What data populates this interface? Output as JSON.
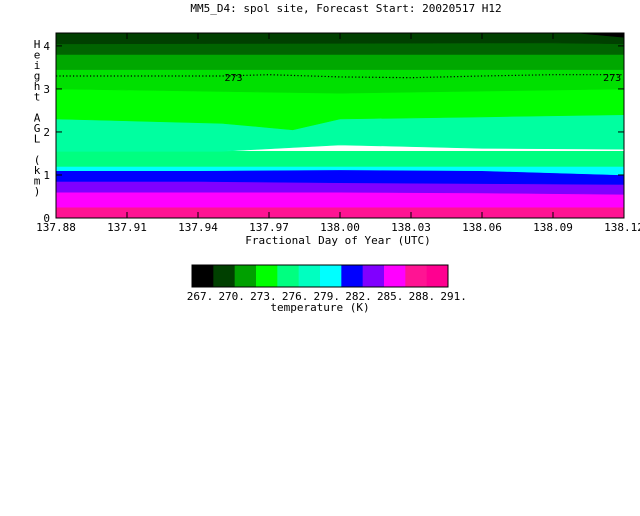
{
  "chart_data": {
    "type": "heatmap",
    "title": "MM5_D4: spol site,  Forecast Start: 20020517 H12",
    "xlabel": "Fractional Day of Year (UTC)",
    "ylabel": "Height AGL (km)",
    "xlim": [
      137.88,
      138.12
    ],
    "ylim": [
      0,
      4.3
    ],
    "x_ticks": [
      "137.88",
      "137.91",
      "137.94",
      "137.97",
      "138.00",
      "138.03",
      "138.06",
      "138.09",
      "138.12"
    ],
    "x_tick_values": [
      137.88,
      137.91,
      137.94,
      137.97,
      138.0,
      138.03,
      138.06,
      138.09,
      138.12
    ],
    "y_ticks": [
      "0",
      "1",
      "2",
      "3",
      "4"
    ],
    "y_tick_values": [
      0,
      1,
      2,
      3,
      4
    ],
    "contour_label": "273",
    "contour_label_x": [
      137.955,
      138.115
    ],
    "bands": [
      {
        "color": "#ff1493",
        "points": [
          [
            137.88,
            0
          ],
          [
            138.12,
            0
          ],
          [
            138.12,
            0.25
          ],
          [
            137.88,
            0.25
          ]
        ]
      },
      {
        "color": "#ff00ff",
        "points": [
          [
            137.88,
            0.25
          ],
          [
            138.12,
            0.25
          ],
          [
            138.12,
            0.55
          ],
          [
            138.06,
            0.58
          ],
          [
            138.0,
            0.6
          ],
          [
            137.94,
            0.6
          ],
          [
            137.88,
            0.6
          ]
        ]
      },
      {
        "color": "#8000ff",
        "points": [
          [
            137.88,
            0.6
          ],
          [
            137.94,
            0.6
          ],
          [
            138.0,
            0.6
          ],
          [
            138.06,
            0.58
          ],
          [
            138.12,
            0.55
          ],
          [
            138.12,
            0.78
          ],
          [
            138.06,
            0.8
          ],
          [
            138.0,
            0.82
          ],
          [
            137.94,
            0.85
          ],
          [
            137.88,
            0.85
          ]
        ]
      },
      {
        "color": "#0000ff",
        "points": [
          [
            137.88,
            0.85
          ],
          [
            137.94,
            0.85
          ],
          [
            138.0,
            0.82
          ],
          [
            138.06,
            0.8
          ],
          [
            138.12,
            0.78
          ],
          [
            138.12,
            1.0
          ],
          [
            138.06,
            1.1
          ],
          [
            138.0,
            1.12
          ],
          [
            137.94,
            1.1
          ],
          [
            137.88,
            1.1
          ]
        ]
      },
      {
        "color": "#00ffff",
        "points": [
          [
            137.88,
            1.1
          ],
          [
            137.94,
            1.1
          ],
          [
            138.0,
            1.12
          ],
          [
            138.06,
            1.1
          ],
          [
            138.12,
            1.0
          ],
          [
            138.12,
            1.2
          ],
          [
            137.88,
            1.2
          ]
        ]
      },
      {
        "color": "#00ff80",
        "points": [
          [
            137.88,
            1.2
          ],
          [
            138.12,
            1.2
          ],
          [
            138.12,
            1.55
          ],
          [
            137.88,
            1.55
          ]
        ]
      },
      {
        "color": "#00ffa0",
        "points": [
          [
            137.88,
            1.55
          ],
          [
            137.95,
            1.55
          ],
          [
            138.0,
            1.7
          ],
          [
            138.06,
            1.62
          ],
          [
            138.12,
            1.6
          ],
          [
            138.12,
            2.4
          ],
          [
            138.06,
            2.35
          ],
          [
            138.0,
            2.3
          ],
          [
            137.98,
            2.05
          ],
          [
            137.95,
            2.2
          ],
          [
            137.88,
            2.3
          ]
        ]
      },
      {
        "color": "#00ff00",
        "points": [
          [
            137.88,
            2.3
          ],
          [
            137.95,
            2.2
          ],
          [
            137.98,
            2.05
          ],
          [
            138.0,
            2.3
          ],
          [
            138.06,
            2.35
          ],
          [
            138.12,
            2.4
          ],
          [
            138.12,
            3.0
          ],
          [
            138.06,
            2.95
          ],
          [
            138.0,
            2.9
          ],
          [
            137.94,
            2.95
          ],
          [
            137.88,
            3.0
          ]
        ]
      },
      {
        "color": "#00e000",
        "points": [
          [
            137.88,
            3.0
          ],
          [
            137.94,
            2.95
          ],
          [
            138.0,
            2.9
          ],
          [
            138.06,
            2.95
          ],
          [
            138.12,
            3.0
          ],
          [
            138.12,
            3.45
          ],
          [
            137.88,
            3.45
          ]
        ]
      },
      {
        "color": "#00a800",
        "points": [
          [
            137.88,
            3.45
          ],
          [
            138.12,
            3.45
          ],
          [
            138.12,
            3.8
          ],
          [
            137.88,
            3.8
          ]
        ]
      },
      {
        "color": "#006400",
        "points": [
          [
            137.88,
            3.8
          ],
          [
            138.12,
            3.8
          ],
          [
            138.12,
            4.05
          ],
          [
            138.09,
            4.07
          ],
          [
            137.88,
            4.05
          ]
        ]
      },
      {
        "color": "#004000",
        "points": [
          [
            137.88,
            4.05
          ],
          [
            138.09,
            4.07
          ],
          [
            138.12,
            4.05
          ],
          [
            138.12,
            4.3
          ],
          [
            137.88,
            4.3
          ]
        ]
      },
      {
        "color": "#000000",
        "points": [
          [
            138.1,
            4.3
          ],
          [
            138.12,
            4.2
          ],
          [
            138.12,
            4.3
          ]
        ]
      }
    ],
    "colorbar": {
      "label": "temperature (K)",
      "colors": [
        "#000000",
        "#004000",
        "#00a000",
        "#00ff00",
        "#00ff80",
        "#00ffc0",
        "#00ffff",
        "#0000ff",
        "#8000ff",
        "#ff00ff",
        "#ff1493",
        "#ff0090"
      ],
      "ticks": [
        "267.",
        "270.",
        "273.",
        "276.",
        "279.",
        "282.",
        "285.",
        "288.",
        "291."
      ]
    }
  }
}
